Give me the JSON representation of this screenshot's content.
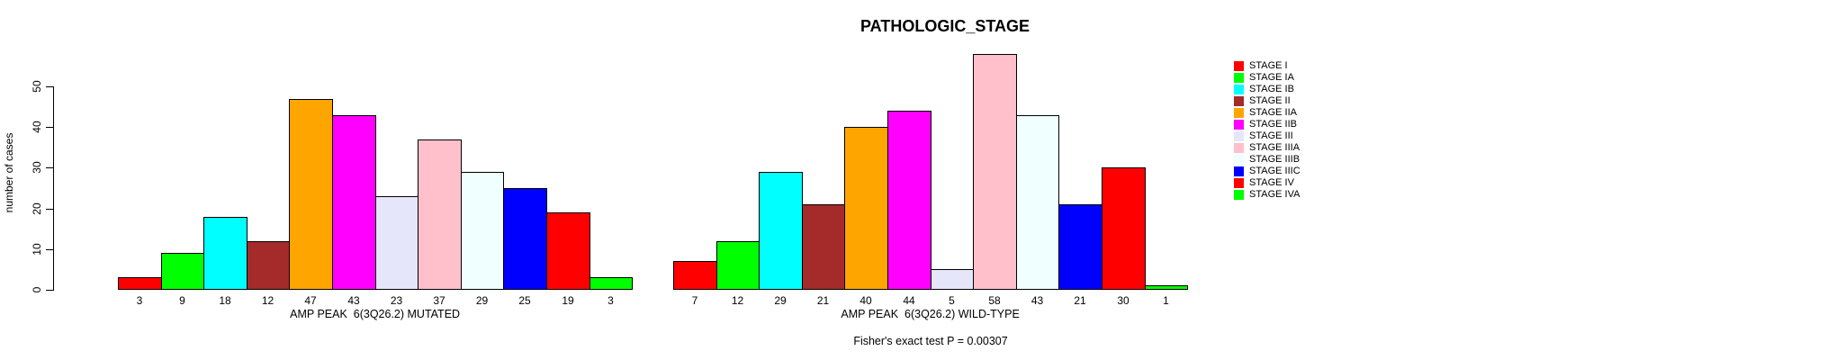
{
  "title": "PATHOLOGIC_STAGE",
  "chart_data": {
    "type": "bar",
    "title": "PATHOLOGIC_STAGE",
    "ylabel": "number of cases",
    "yticks": [
      0,
      10,
      20,
      30,
      40,
      50
    ],
    "ylim": [
      0,
      58
    ],
    "grid": false,
    "legend_position": "right",
    "categories": [
      "STAGE I",
      "STAGE IA",
      "STAGE IB",
      "STAGE II",
      "STAGE IIA",
      "STAGE IIB",
      "STAGE III",
      "STAGE IIIA",
      "STAGE IIIB",
      "STAGE IIIC",
      "STAGE IV",
      "STAGE IVA"
    ],
    "colors": [
      "#FF0000",
      "#00FF00",
      "#00FFFF",
      "#A52A2A",
      "#FFA500",
      "#FF00FF",
      "#E6E6FA",
      "#FFC0CB",
      "#F0FFFF",
      "#0000FF",
      "#FF0000",
      "#00FF00"
    ],
    "groups": [
      {
        "xlabel": "AMP PEAK  6(3Q26.2) MUTATED",
        "values": [
          3,
          9,
          18,
          12,
          47,
          43,
          23,
          37,
          29,
          25,
          19,
          3
        ]
      },
      {
        "xlabel": "AMP PEAK  6(3Q26.2) WILD-TYPE",
        "values": [
          7,
          12,
          29,
          21,
          40,
          44,
          5,
          58,
          43,
          21,
          30,
          1
        ]
      }
    ],
    "annotation": "Fisher's exact test P = 0.00307"
  }
}
